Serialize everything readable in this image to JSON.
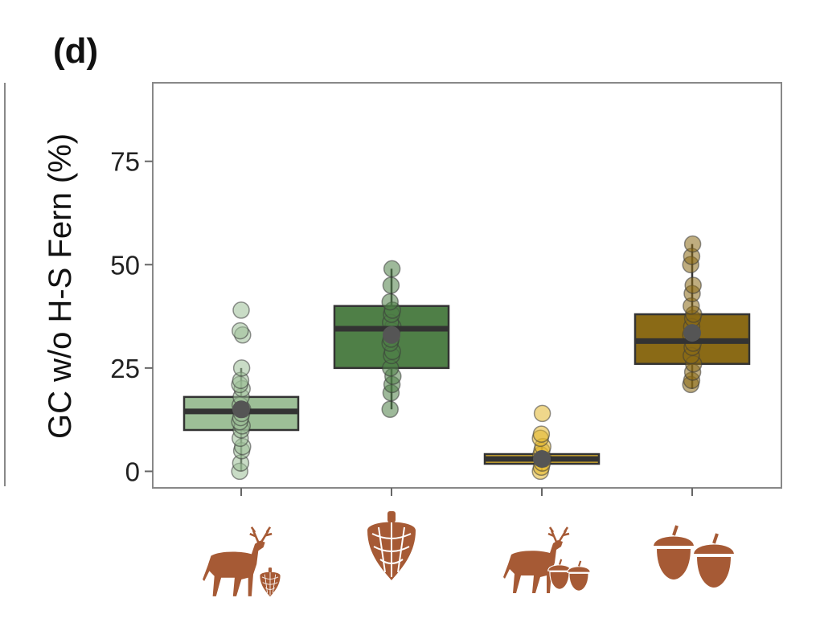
{
  "figure": {
    "panel_label": "(d)"
  },
  "chart_data": {
    "type": "box",
    "ylabel": "GC w/o H-S Fern (%)",
    "xlabel": "",
    "ylim": [
      -4,
      94
    ],
    "yticks": [
      0,
      25,
      50,
      75
    ],
    "grid": false,
    "legend": "none",
    "categories": [
      "deer-and-pinecone",
      "pinecone",
      "deer-and-acorns",
      "acorns"
    ],
    "series": [
      {
        "category": "deer-and-pinecone",
        "fill": "#9dbf97",
        "point_color": "#9dbf97",
        "q1": 10,
        "median": 14.5,
        "q3": 18,
        "whisker_low": 0,
        "whisker_high": 25,
        "mean": 15,
        "points": [
          0,
          2,
          5,
          6,
          8,
          10,
          11,
          12,
          13,
          14,
          15,
          16,
          18,
          20,
          21,
          22,
          25,
          33,
          34,
          39
        ]
      },
      {
        "category": "pinecone",
        "fill": "#4f7f47",
        "point_color": "#4f7f47",
        "q1": 25,
        "median": 34.5,
        "q3": 40,
        "whisker_low": 15,
        "whisker_high": 49,
        "mean": 33,
        "points": [
          15,
          19,
          21,
          23,
          25,
          28,
          29,
          31,
          32,
          34,
          35,
          36,
          38,
          39,
          41,
          45,
          49
        ]
      },
      {
        "category": "deer-and-acorns",
        "fill": "#e2b62c",
        "point_color": "#e2b62c",
        "q1": 2,
        "median": 3,
        "q3": 4,
        "whisker_low": 0,
        "whisker_high": 6,
        "mean": 3,
        "points": [
          0,
          1,
          2,
          3,
          4,
          5,
          6,
          8,
          9,
          14
        ]
      },
      {
        "category": "acorns",
        "fill": "#8a6a16",
        "point_color": "#8a6a16",
        "q1": 26,
        "median": 31.5,
        "q3": 38,
        "whisker_low": 20,
        "whisker_high": 55,
        "mean": 33.5,
        "points": [
          21,
          22,
          24,
          26,
          28,
          30,
          31,
          33,
          35,
          37,
          38,
          40,
          43,
          45,
          50,
          52,
          55
        ]
      }
    ],
    "icon_color": "#a65a35"
  }
}
